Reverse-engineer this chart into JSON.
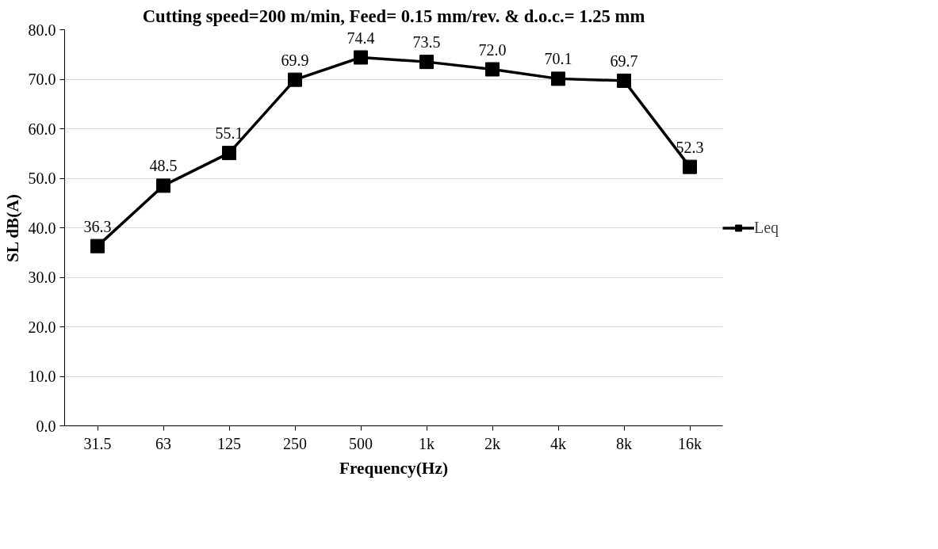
{
  "chart_data": {
    "type": "line",
    "title": "Cutting speed=200 m/min, Feed= 0.15 mm/rev. & d.o.c.= 1.25 mm",
    "xlabel": "Frequency(Hz)",
    "ylabel": "SL dB(A)",
    "categories": [
      "31.5",
      "63",
      "125",
      "250",
      "500",
      "1k",
      "2k",
      "4k",
      "8k",
      "16k"
    ],
    "series": [
      {
        "name": "Leq",
        "color": "#000000",
        "values": [
          36.3,
          48.5,
          55.1,
          69.9,
          74.4,
          73.5,
          72.0,
          70.1,
          69.7,
          52.3
        ]
      }
    ],
    "ylim": [
      0,
      80
    ],
    "yticks": [
      {
        "value": 0,
        "label": "0.0"
      },
      {
        "value": 10,
        "label": "10.0"
      },
      {
        "value": 20,
        "label": "20.0"
      },
      {
        "value": 30,
        "label": "30.0"
      },
      {
        "value": 40,
        "label": "40.0"
      },
      {
        "value": 50,
        "label": "50.0"
      },
      {
        "value": 60,
        "label": "60.0"
      },
      {
        "value": 70,
        "label": "70.0"
      },
      {
        "value": 80,
        "label": "80.0"
      }
    ],
    "value_labels": [
      "36.3",
      "48.5",
      "55.1",
      "69.9",
      "74.4",
      "73.5",
      "72.0",
      "70.1",
      "69.7",
      "52.3"
    ],
    "grid": "y",
    "legend": "right",
    "marker": "square",
    "line_style": "solid"
  }
}
